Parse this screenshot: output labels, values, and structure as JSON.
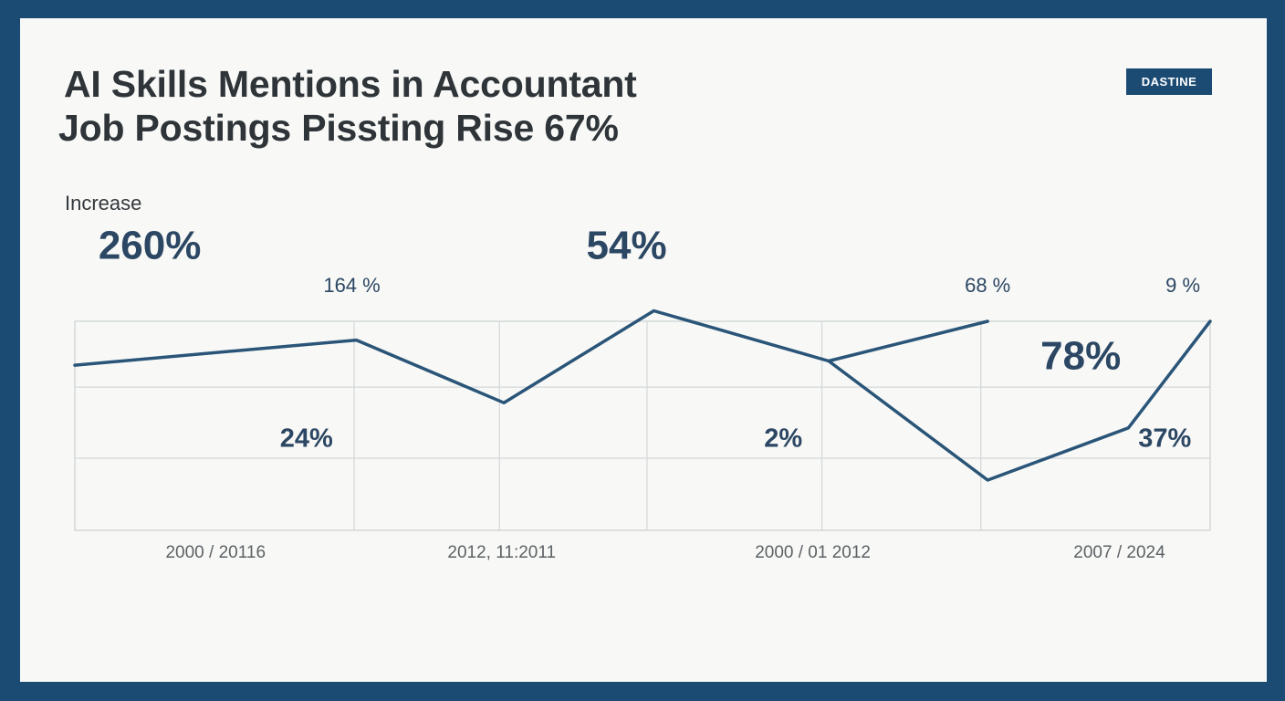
{
  "header": {
    "title_line1": "AI Skills Mentions in Accountant",
    "title_line2": "Job Postings Pissting  Rise 67%",
    "badge": "DASTINE",
    "subtitle": "Increase"
  },
  "chart_data": {
    "type": "line",
    "title": "AI Skills Mentions in Accountant Job Postings Pissting  Rise 67%",
    "subtitle": "Increase",
    "xlabel": "",
    "ylabel": "",
    "x_tick_labels": [
      "2000 / 20116",
      "2012, 11:2011",
      "2000 / 01 2012",
      "2007 / 2024"
    ],
    "grid": true,
    "series": [
      {
        "values": [
          {
            "x": 0.0,
            "y": 0.79
          },
          {
            "x": 1.24,
            "y": 0.91
          },
          {
            "x": 1.89,
            "y": 0.61
          },
          {
            "x": 2.55,
            "y": 1.05
          },
          {
            "x": 3.32,
            "y": 0.81
          },
          {
            "x": 4.02,
            "y": 1.0
          }
        ]
      },
      {
        "values": [
          {
            "x": 3.32,
            "y": 0.81
          },
          {
            "x": 4.02,
            "y": 0.24
          },
          {
            "x": 4.64,
            "y": 0.49
          },
          {
            "x": 5.0,
            "y": 1.0
          }
        ]
      }
    ],
    "data_labels": [
      {
        "text": "260%",
        "x": 0.33,
        "y": 1.3,
        "emphasis": "large"
      },
      {
        "text": "164 %",
        "x": 1.22,
        "y": 1.14,
        "emphasis": "small"
      },
      {
        "text": "54%",
        "x": 2.43,
        "y": 1.3,
        "emphasis": "large"
      },
      {
        "text": "68 %",
        "x": 4.02,
        "y": 1.14,
        "emphasis": "small"
      },
      {
        "text": "9 %",
        "x": 4.88,
        "y": 1.14,
        "emphasis": "small"
      },
      {
        "text": "78%",
        "x": 4.43,
        "y": 0.77,
        "emphasis": "large"
      },
      {
        "text": "24%",
        "x": 1.02,
        "y": 0.4,
        "emphasis": "medium"
      },
      {
        "text": "2%",
        "x": 3.12,
        "y": 0.4,
        "emphasis": "medium"
      },
      {
        "text": "37%",
        "x": 4.8,
        "y": 0.4,
        "emphasis": "medium"
      }
    ],
    "colors": {
      "line": "#2a5578",
      "grid": "#d4d7d9",
      "label": "#2c4763",
      "tick": "#5c6165"
    }
  }
}
